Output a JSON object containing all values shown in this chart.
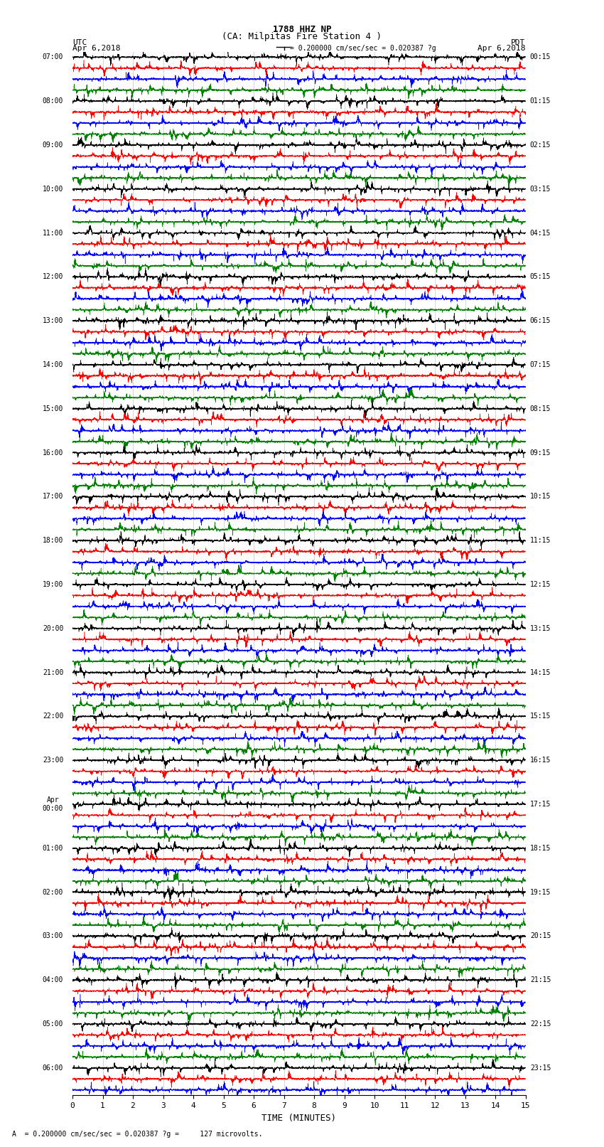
{
  "title_line1": "1788 HHZ NP",
  "title_line2": "(CA: Milpitas Fire Station 4 )",
  "left_header_top": "UTC",
  "left_header_bot": "Apr 6,2018",
  "right_header_top": "PDT",
  "right_header_bot": "Apr 6,2018",
  "scale_text": "= 0.200000 cm/sec/sec = 0.020387 ?g",
  "scale_label": "A",
  "scale_bottom": "A  = 0.200000 cm/sec/sec = 0.020387 ?g =     127 microvolts.",
  "xlabel": "TIME (MINUTES)",
  "xmin": 0,
  "xmax": 15,
  "xticks": [
    0,
    1,
    2,
    3,
    4,
    5,
    6,
    7,
    8,
    9,
    10,
    11,
    12,
    13,
    14,
    15
  ],
  "colors": [
    "black",
    "red",
    "blue",
    "green"
  ],
  "fig_width": 8.5,
  "fig_height": 16.13,
  "dpi": 100,
  "background_color": "#ffffff",
  "left_utc_times": [
    "07:00",
    "",
    "",
    "",
    "08:00",
    "",
    "",
    "",
    "09:00",
    "",
    "",
    "",
    "10:00",
    "",
    "",
    "",
    "11:00",
    "",
    "",
    "",
    "12:00",
    "",
    "",
    "",
    "13:00",
    "",
    "",
    "",
    "14:00",
    "",
    "",
    "",
    "15:00",
    "",
    "",
    "",
    "16:00",
    "",
    "",
    "",
    "17:00",
    "",
    "",
    "",
    "18:00",
    "",
    "",
    "",
    "19:00",
    "",
    "",
    "",
    "20:00",
    "",
    "",
    "",
    "21:00",
    "",
    "",
    "",
    "22:00",
    "",
    "",
    "",
    "23:00",
    "",
    "",
    "",
    "Apr\n00:00",
    "",
    "",
    "",
    "01:00",
    "",
    "",
    "",
    "02:00",
    "",
    "",
    "",
    "03:00",
    "",
    "",
    "",
    "04:00",
    "",
    "",
    "",
    "05:00",
    "",
    "",
    "",
    "06:00",
    "",
    ""
  ],
  "right_pdt_times": [
    "00:15",
    "",
    "",
    "",
    "01:15",
    "",
    "",
    "",
    "02:15",
    "",
    "",
    "",
    "03:15",
    "",
    "",
    "",
    "04:15",
    "",
    "",
    "",
    "05:15",
    "",
    "",
    "",
    "06:15",
    "",
    "",
    "",
    "07:15",
    "",
    "",
    "",
    "08:15",
    "",
    "",
    "",
    "09:15",
    "",
    "",
    "",
    "10:15",
    "",
    "",
    "",
    "11:15",
    "",
    "",
    "",
    "12:15",
    "",
    "",
    "",
    "13:15",
    "",
    "",
    "",
    "14:15",
    "",
    "",
    "",
    "15:15",
    "",
    "",
    "",
    "16:15",
    "",
    "",
    "",
    "17:15",
    "",
    "",
    "",
    "18:15",
    "",
    "",
    "",
    "19:15",
    "",
    "",
    "",
    "20:15",
    "",
    "",
    "",
    "21:15",
    "",
    "",
    "",
    "22:15",
    "",
    "",
    "",
    "23:15",
    "",
    ""
  ]
}
